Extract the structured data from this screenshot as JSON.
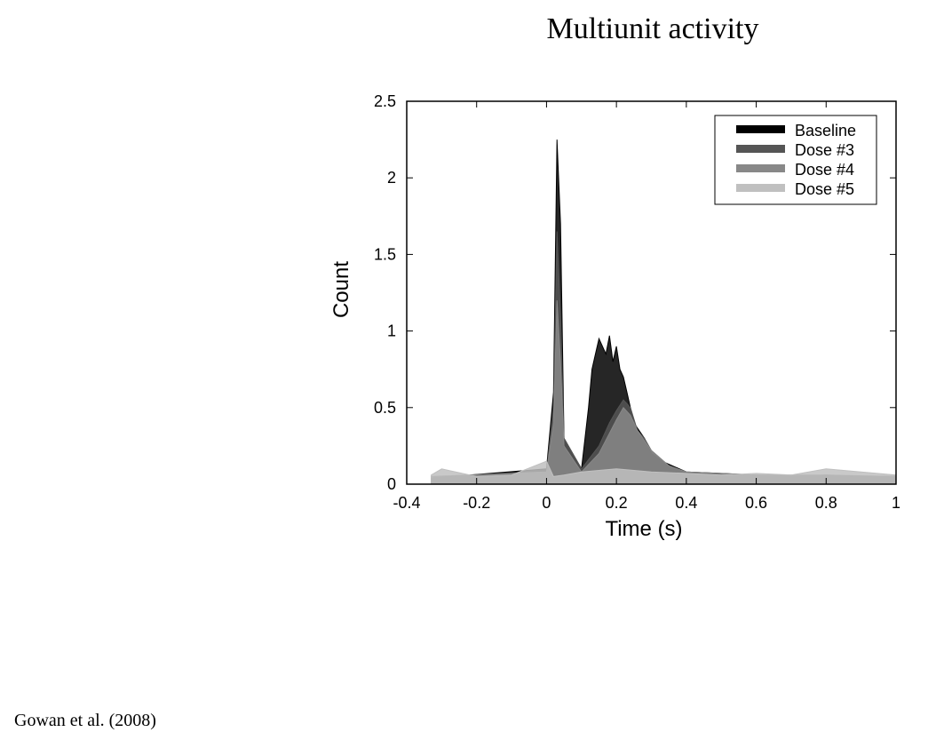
{
  "slide": {
    "title": "Multiunit activity",
    "citation": "Gowan et al. (2008)"
  },
  "chart_data": {
    "type": "histogram",
    "xlabel": "Time (s)",
    "ylabel": "Count",
    "xlim": [
      -0.4,
      1
    ],
    "ylim": [
      0,
      2.5
    ],
    "xticks": [
      "-0.4",
      "-0.2",
      "0",
      "0.2",
      "0.4",
      "0.6",
      "0.8",
      "1"
    ],
    "yticks": [
      "0",
      "0.5",
      "1",
      "1.5",
      "2",
      "2.5"
    ],
    "grid": false,
    "legend_position": "top-right",
    "series": [
      {
        "name": "Baseline",
        "color": "#000000",
        "x": [
          -0.33,
          0.0,
          0.02,
          0.03,
          0.04,
          0.05,
          0.1,
          0.12,
          0.13,
          0.14,
          0.15,
          0.16,
          0.17,
          0.18,
          0.19,
          0.2,
          0.21,
          0.22,
          0.23,
          0.24,
          0.25,
          0.28,
          0.3,
          0.33,
          0.36,
          0.4,
          0.5,
          0.6,
          0.7,
          0.8,
          0.9,
          1.0
        ],
        "values": [
          0.04,
          0.1,
          0.6,
          2.25,
          1.7,
          0.3,
          0.1,
          0.5,
          0.75,
          0.85,
          0.95,
          0.9,
          0.85,
          0.97,
          0.8,
          0.9,
          0.75,
          0.7,
          0.6,
          0.5,
          0.4,
          0.3,
          0.2,
          0.15,
          0.12,
          0.08,
          0.07,
          0.06,
          0.05,
          0.06,
          0.05,
          0.05
        ]
      },
      {
        "name": "Dose #3",
        "color": "#555555",
        "x": [
          -0.33,
          0.0,
          0.02,
          0.03,
          0.04,
          0.05,
          0.1,
          0.15,
          0.18,
          0.2,
          0.22,
          0.24,
          0.26,
          0.28,
          0.3,
          0.35,
          0.4,
          0.6,
          0.8,
          1.0
        ],
        "values": [
          0.04,
          0.08,
          0.5,
          1.65,
          1.1,
          0.3,
          0.1,
          0.25,
          0.4,
          0.48,
          0.55,
          0.5,
          0.35,
          0.3,
          0.22,
          0.12,
          0.07,
          0.05,
          0.05,
          0.05
        ]
      },
      {
        "name": "Dose #4",
        "color": "#888888",
        "x": [
          -0.33,
          0.0,
          0.02,
          0.03,
          0.04,
          0.05,
          0.1,
          0.15,
          0.2,
          0.22,
          0.24,
          0.26,
          0.3,
          0.35,
          0.4,
          0.6,
          0.8,
          1.0
        ],
        "values": [
          0.05,
          0.08,
          0.4,
          1.2,
          0.8,
          0.25,
          0.08,
          0.2,
          0.42,
          0.5,
          0.45,
          0.35,
          0.22,
          0.12,
          0.08,
          0.06,
          0.06,
          0.05
        ]
      },
      {
        "name": "Dose #5",
        "color": "#c0c0c0",
        "x": [
          -0.33,
          -0.3,
          -0.2,
          -0.1,
          0.0,
          0.02,
          0.05,
          0.1,
          0.2,
          0.3,
          0.4,
          0.5,
          0.6,
          0.7,
          0.8,
          0.9,
          1.0
        ],
        "values": [
          0.06,
          0.1,
          0.05,
          0.06,
          0.15,
          0.05,
          0.06,
          0.08,
          0.1,
          0.08,
          0.07,
          0.06,
          0.07,
          0.06,
          0.1,
          0.08,
          0.06
        ]
      }
    ]
  }
}
